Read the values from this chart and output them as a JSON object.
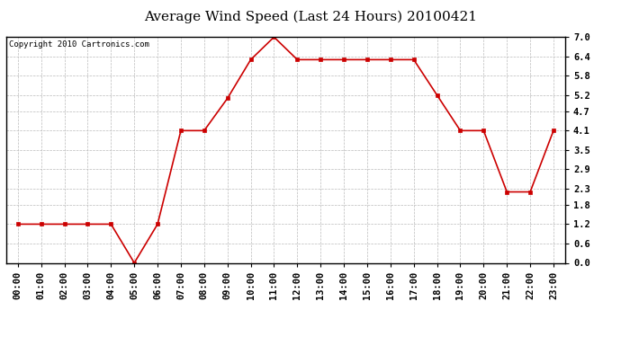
{
  "title": "Average Wind Speed (Last 24 Hours) 20100421",
  "copyright_text": "Copyright 2010 Cartronics.com",
  "x_labels": [
    "00:00",
    "01:00",
    "02:00",
    "03:00",
    "04:00",
    "05:00",
    "06:00",
    "07:00",
    "08:00",
    "09:00",
    "10:00",
    "11:00",
    "12:00",
    "13:00",
    "14:00",
    "15:00",
    "16:00",
    "17:00",
    "18:00",
    "19:00",
    "20:00",
    "21:00",
    "22:00",
    "23:00"
  ],
  "y_values": [
    1.2,
    1.2,
    1.2,
    1.2,
    1.2,
    0.0,
    1.2,
    4.1,
    4.1,
    5.1,
    6.3,
    7.0,
    6.3,
    6.3,
    6.3,
    6.3,
    6.3,
    6.3,
    5.2,
    4.1,
    4.1,
    2.2,
    2.2,
    4.1
  ],
  "line_color": "#cc0000",
  "marker_color": "#cc0000",
  "bg_color": "#ffffff",
  "plot_bg_color": "#ffffff",
  "grid_color": "#bbbbbb",
  "y_ticks": [
    0.0,
    0.6,
    1.2,
    1.8,
    2.3,
    2.9,
    3.5,
    4.1,
    4.7,
    5.2,
    5.8,
    6.4,
    7.0
  ],
  "ylim": [
    0.0,
    7.0
  ],
  "title_fontsize": 11,
  "tick_fontsize": 7.5,
  "copyright_fontsize": 6.5
}
